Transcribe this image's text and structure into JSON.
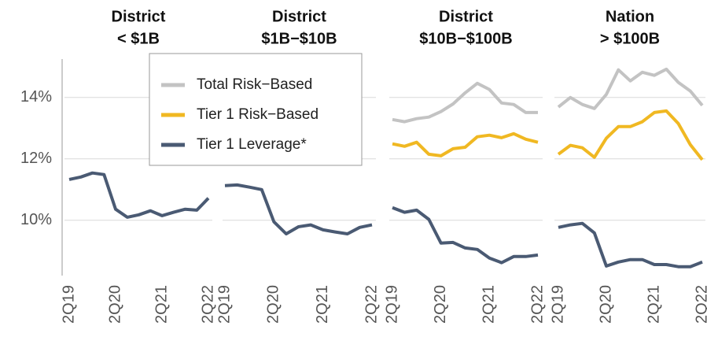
{
  "chart_data": [
    {
      "type": "line",
      "title": [
        "District",
        "< $1B"
      ],
      "categories": [
        "2Q19",
        null,
        null,
        null,
        "2Q20",
        null,
        null,
        null,
        "2Q21",
        null,
        null,
        null,
        "2Q22"
      ],
      "ylim": [
        8.2,
        15.25
      ],
      "yticks": [
        {
          "value": 10,
          "label": "10%"
        },
        {
          "value": 12,
          "label": "12%"
        },
        {
          "value": 14,
          "label": "14%"
        }
      ],
      "series": [
        {
          "name": "Tier 1 Leverage*",
          "color": "#4a5a73",
          "values": [
            11.33,
            11.41,
            11.54,
            11.49,
            10.36,
            10.1,
            10.18,
            10.31,
            10.15,
            10.26,
            10.36,
            10.33,
            10.72
          ]
        }
      ]
    },
    {
      "type": "line",
      "title": [
        "District",
        "$1B−$10B"
      ],
      "categories": [
        "2Q19",
        null,
        null,
        null,
        "2Q20",
        null,
        null,
        null,
        "2Q21",
        null,
        null,
        null,
        "2Q22"
      ],
      "ylim": [
        8.2,
        15.25
      ],
      "yticks": [
        10,
        12,
        14
      ],
      "series": [
        {
          "name": "Tier 1 Leverage*",
          "color": "#4a5a73",
          "values": [
            11.13,
            11.15,
            11.08,
            11.0,
            9.95,
            9.56,
            9.79,
            9.85,
            9.69,
            9.62,
            9.56,
            9.77,
            9.85
          ]
        }
      ]
    },
    {
      "type": "line",
      "title": [
        "District",
        "$10B−$100B"
      ],
      "categories": [
        "2Q19",
        null,
        null,
        null,
        "2Q20",
        null,
        null,
        null,
        "2Q21",
        null,
        null,
        null,
        "2Q22"
      ],
      "ylim": [
        8.2,
        15.25
      ],
      "yticks": [
        10,
        12,
        14
      ],
      "series": [
        {
          "name": "Total Risk−Based",
          "color": "#c3c3c3",
          "values": [
            13.28,
            13.21,
            13.31,
            13.36,
            13.54,
            13.79,
            14.15,
            14.46,
            14.26,
            13.82,
            13.77,
            13.51,
            13.51
          ]
        },
        {
          "name": "Tier 1 Risk−Based",
          "color": "#f0b822",
          "values": [
            12.49,
            12.41,
            12.54,
            12.15,
            12.1,
            12.33,
            12.38,
            12.72,
            12.77,
            12.69,
            12.82,
            12.64,
            12.54
          ]
        },
        {
          "name": "Tier 1 Leverage*",
          "color": "#4a5a73",
          "values": [
            10.41,
            10.26,
            10.33,
            10.03,
            9.26,
            9.28,
            9.1,
            9.05,
            8.77,
            8.62,
            8.82,
            8.82,
            8.87
          ]
        }
      ]
    },
    {
      "type": "line",
      "title": [
        "Nation",
        "> $100B"
      ],
      "categories": [
        "2Q19",
        null,
        null,
        null,
        "2Q20",
        null,
        null,
        null,
        "2Q21",
        null,
        null,
        null,
        "2Q22"
      ],
      "ylim": [
        8.2,
        15.25
      ],
      "yticks": [
        10,
        12,
        14
      ],
      "series": [
        {
          "name": "Total Risk−Based",
          "color": "#c3c3c3",
          "values": [
            13.69,
            14.0,
            13.77,
            13.64,
            14.1,
            14.9,
            14.54,
            14.82,
            14.72,
            14.92,
            14.49,
            14.21,
            13.74
          ]
        },
        {
          "name": "Tier 1 Risk−Based",
          "color": "#f0b822",
          "values": [
            12.15,
            12.44,
            12.36,
            12.05,
            12.67,
            13.05,
            13.05,
            13.21,
            13.51,
            13.56,
            13.15,
            12.46,
            11.97
          ]
        },
        {
          "name": "Tier 1 Leverage*",
          "color": "#4a5a73",
          "values": [
            9.77,
            9.85,
            9.9,
            9.59,
            8.51,
            8.64,
            8.72,
            8.72,
            8.56,
            8.56,
            8.49,
            8.49,
            8.64
          ]
        }
      ]
    }
  ]
}
